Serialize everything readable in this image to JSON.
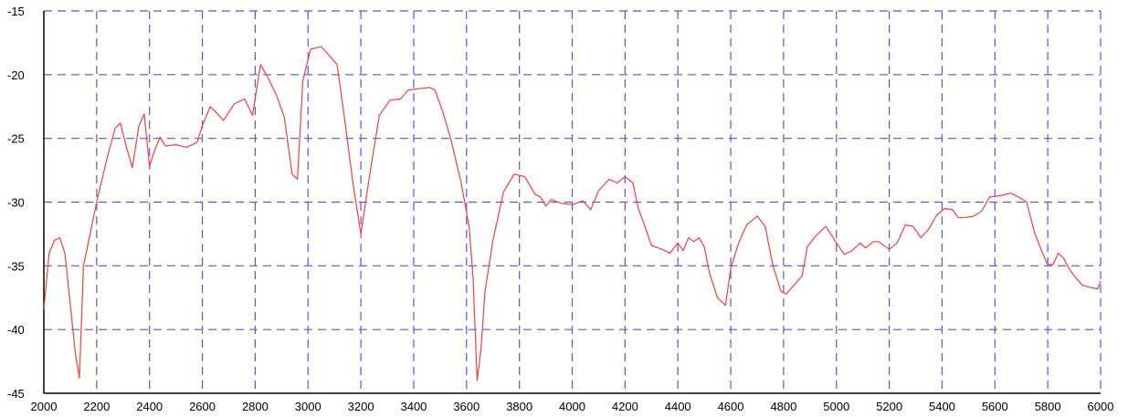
{
  "chart_data": {
    "type": "line",
    "title": "",
    "xlabel": "",
    "ylabel": "",
    "xlim": [
      2000,
      6000
    ],
    "ylim": [
      -45,
      -15
    ],
    "x_ticks": [
      2000,
      2200,
      2400,
      2600,
      2800,
      3000,
      3200,
      3400,
      3600,
      3800,
      4000,
      4200,
      4400,
      4600,
      4800,
      5000,
      5200,
      5400,
      5600,
      5800,
      6000
    ],
    "y_ticks": [
      -15,
      -20,
      -25,
      -30,
      -35,
      -40,
      -45
    ],
    "x_tick_labels": [
      "2000",
      "2200",
      "2400",
      "2600",
      "2800",
      "3000",
      "3200",
      "3400",
      "3600",
      "3800",
      "4000",
      "4200",
      "4400",
      "4600",
      "4800",
      "5000",
      "5200",
      "5400",
      "5600",
      "5800",
      "6000"
    ],
    "y_tick_labels": [
      "-15",
      "-20",
      "-25",
      "-30",
      "-35",
      "-40",
      "-45"
    ],
    "grid": true,
    "colors": {
      "line": "#ff3b3b",
      "grid": "#5555ee",
      "axis": "#000000"
    },
    "series": [
      {
        "x": [
          2000,
          2020,
          2040,
          2060,
          2080,
          2100,
          2120,
          2135,
          2150,
          2180,
          2200,
          2240,
          2270,
          2290,
          2310,
          2335,
          2360,
          2380,
          2400,
          2420,
          2440,
          2460,
          2500,
          2540,
          2580,
          2600,
          2630,
          2650,
          2680,
          2720,
          2760,
          2790,
          2820,
          2850,
          2880,
          2910,
          2940,
          2960,
          2980,
          3010,
          3050,
          3080,
          3110,
          3140,
          3170,
          3200,
          3230,
          3270,
          3310,
          3350,
          3380,
          3420,
          3460,
          3480,
          3510,
          3540,
          3580,
          3610,
          3625,
          3640,
          3655,
          3670,
          3700,
          3740,
          3780,
          3820,
          3860,
          3880,
          3900,
          3920,
          3960,
          4000,
          4040,
          4070,
          4100,
          4140,
          4170,
          4200,
          4230,
          4250,
          4270,
          4300,
          4340,
          4370,
          4400,
          4420,
          4440,
          4460,
          4480,
          4500,
          4520,
          4550,
          4580,
          4600,
          4630,
          4660,
          4700,
          4730,
          4760,
          4790,
          4810,
          4840,
          4870,
          4890,
          4920,
          4960,
          5000,
          5030,
          5060,
          5090,
          5110,
          5140,
          5160,
          5200,
          5230,
          5260,
          5290,
          5320,
          5350,
          5380,
          5410,
          5440,
          5460,
          5490,
          5520,
          5550,
          5580,
          5620,
          5660,
          5690,
          5720,
          5750,
          5780,
          5800,
          5820,
          5840,
          5860,
          5880,
          5900,
          5930,
          5960,
          5990,
          6000
        ],
        "y": [
          -38.4,
          -34,
          -33,
          -32.8,
          -34,
          -38,
          -42,
          -43.8,
          -35,
          -32,
          -30,
          -26.5,
          -24.2,
          -23.8,
          -25.5,
          -27.3,
          -24,
          -23.1,
          -27.2,
          -25.9,
          -24.9,
          -25.6,
          -25.5,
          -25.7,
          -25.3,
          -24,
          -22.5,
          -22.9,
          -23.6,
          -22.3,
          -21.9,
          -23.2,
          -19.2,
          -20.3,
          -21.6,
          -23.3,
          -27.8,
          -28.2,
          -20.5,
          -18,
          -17.8,
          -18.5,
          -19.2,
          -23.7,
          -28.5,
          -32.5,
          -28.3,
          -23.2,
          -22,
          -21.9,
          -21.2,
          -21.1,
          -21,
          -21.2,
          -22.9,
          -25,
          -28.5,
          -32,
          -36,
          -44,
          -41.5,
          -37,
          -33,
          -29.2,
          -27.8,
          -28,
          -29.4,
          -29.6,
          -30.3,
          -29.8,
          -30.1,
          -30.2,
          -29.9,
          -30.6,
          -29.1,
          -28.2,
          -28.5,
          -28,
          -28.5,
          -30.5,
          -31.6,
          -33.4,
          -33.7,
          -34,
          -33.2,
          -33.8,
          -32.8,
          -33.1,
          -32.8,
          -33.5,
          -35.6,
          -37.5,
          -38.1,
          -35.2,
          -33.2,
          -31.8,
          -31.1,
          -31.9,
          -35,
          -37,
          -37.2,
          -36.5,
          -35.8,
          -33.5,
          -32.7,
          -31.9,
          -33.2,
          -34.1,
          -33.8,
          -33.2,
          -33.6,
          -33.1,
          -33.1,
          -33.7,
          -33.2,
          -31.8,
          -31.9,
          -32.8,
          -32.1,
          -31,
          -30.5,
          -30.6,
          -31.2,
          -31.2,
          -31.1,
          -30.7,
          -29.6,
          -29.5,
          -29.3,
          -29.6,
          -30,
          -32.4,
          -34,
          -34.9,
          -34.9,
          -34,
          -34.4,
          -35.2,
          -35.8,
          -36.5,
          -36.7,
          -36.8,
          -36.2
        ]
      }
    ]
  }
}
